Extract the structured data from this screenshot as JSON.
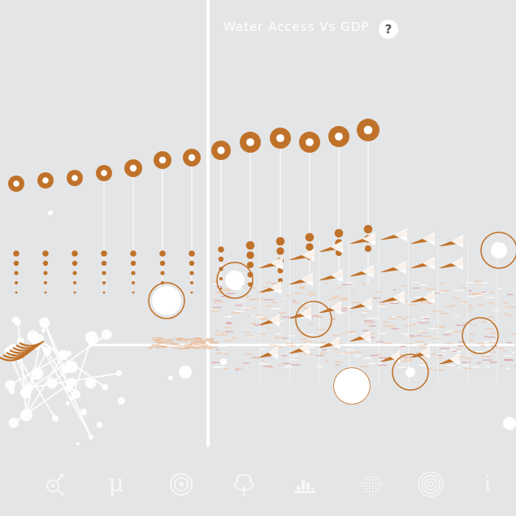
{
  "header": {
    "title": "Water Access Vs GDP",
    "help_label": "?"
  },
  "toolbar": {
    "items": [
      {
        "id": "molecule",
        "icon": "molecule-icon"
      },
      {
        "id": "mu",
        "icon": "mu-icon",
        "label": "μ"
      },
      {
        "id": "target",
        "icon": "target-icon"
      },
      {
        "id": "tree",
        "icon": "tree-icon"
      },
      {
        "id": "bars",
        "icon": "bars-icon"
      },
      {
        "id": "globe",
        "icon": "dotted-globe-icon"
      },
      {
        "id": "rings",
        "icon": "rings-icon"
      },
      {
        "id": "info",
        "icon": "info-icon",
        "label": "i"
      }
    ]
  },
  "colors": {
    "background": "#e4e5e6",
    "accent": "#c0722a",
    "white": "#ffffff"
  }
}
